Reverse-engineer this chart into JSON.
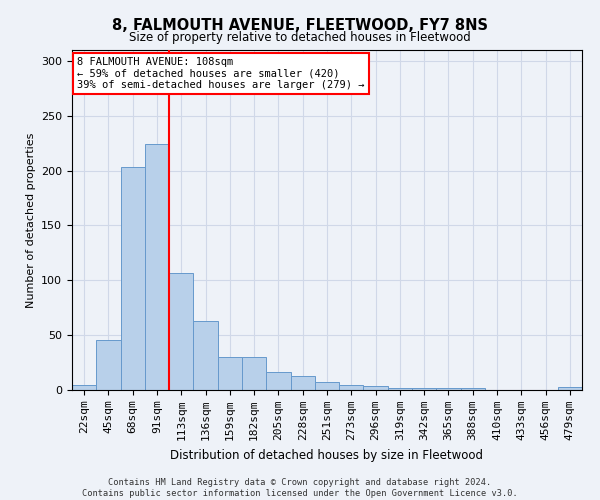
{
  "title": "8, FALMOUTH AVENUE, FLEETWOOD, FY7 8NS",
  "subtitle": "Size of property relative to detached houses in Fleetwood",
  "xlabel": "Distribution of detached houses by size in Fleetwood",
  "ylabel": "Number of detached properties",
  "footer_line1": "Contains HM Land Registry data © Crown copyright and database right 2024.",
  "footer_line2": "Contains public sector information licensed under the Open Government Licence v3.0.",
  "bar_labels": [
    "22sqm",
    "45sqm",
    "68sqm",
    "91sqm",
    "113sqm",
    "136sqm",
    "159sqm",
    "182sqm",
    "205sqm",
    "228sqm",
    "251sqm",
    "273sqm",
    "296sqm",
    "319sqm",
    "342sqm",
    "365sqm",
    "388sqm",
    "410sqm",
    "433sqm",
    "456sqm",
    "479sqm"
  ],
  "bar_values": [
    5,
    46,
    203,
    224,
    107,
    63,
    30,
    30,
    16,
    13,
    7,
    5,
    4,
    2,
    2,
    2,
    2,
    0,
    0,
    0,
    3
  ],
  "bar_color": "#b8d0ea",
  "bar_edge_color": "#6699cc",
  "grid_color": "#d0d8e8",
  "background_color": "#eef2f8",
  "red_line_index": 4,
  "annotation_text": "8 FALMOUTH AVENUE: 108sqm\n← 59% of detached houses are smaller (420)\n39% of semi-detached houses are larger (279) →",
  "annotation_box_color": "white",
  "annotation_border_color": "red",
  "ylim": [
    0,
    310
  ],
  "yticks": [
    0,
    50,
    100,
    150,
    200,
    250,
    300
  ]
}
